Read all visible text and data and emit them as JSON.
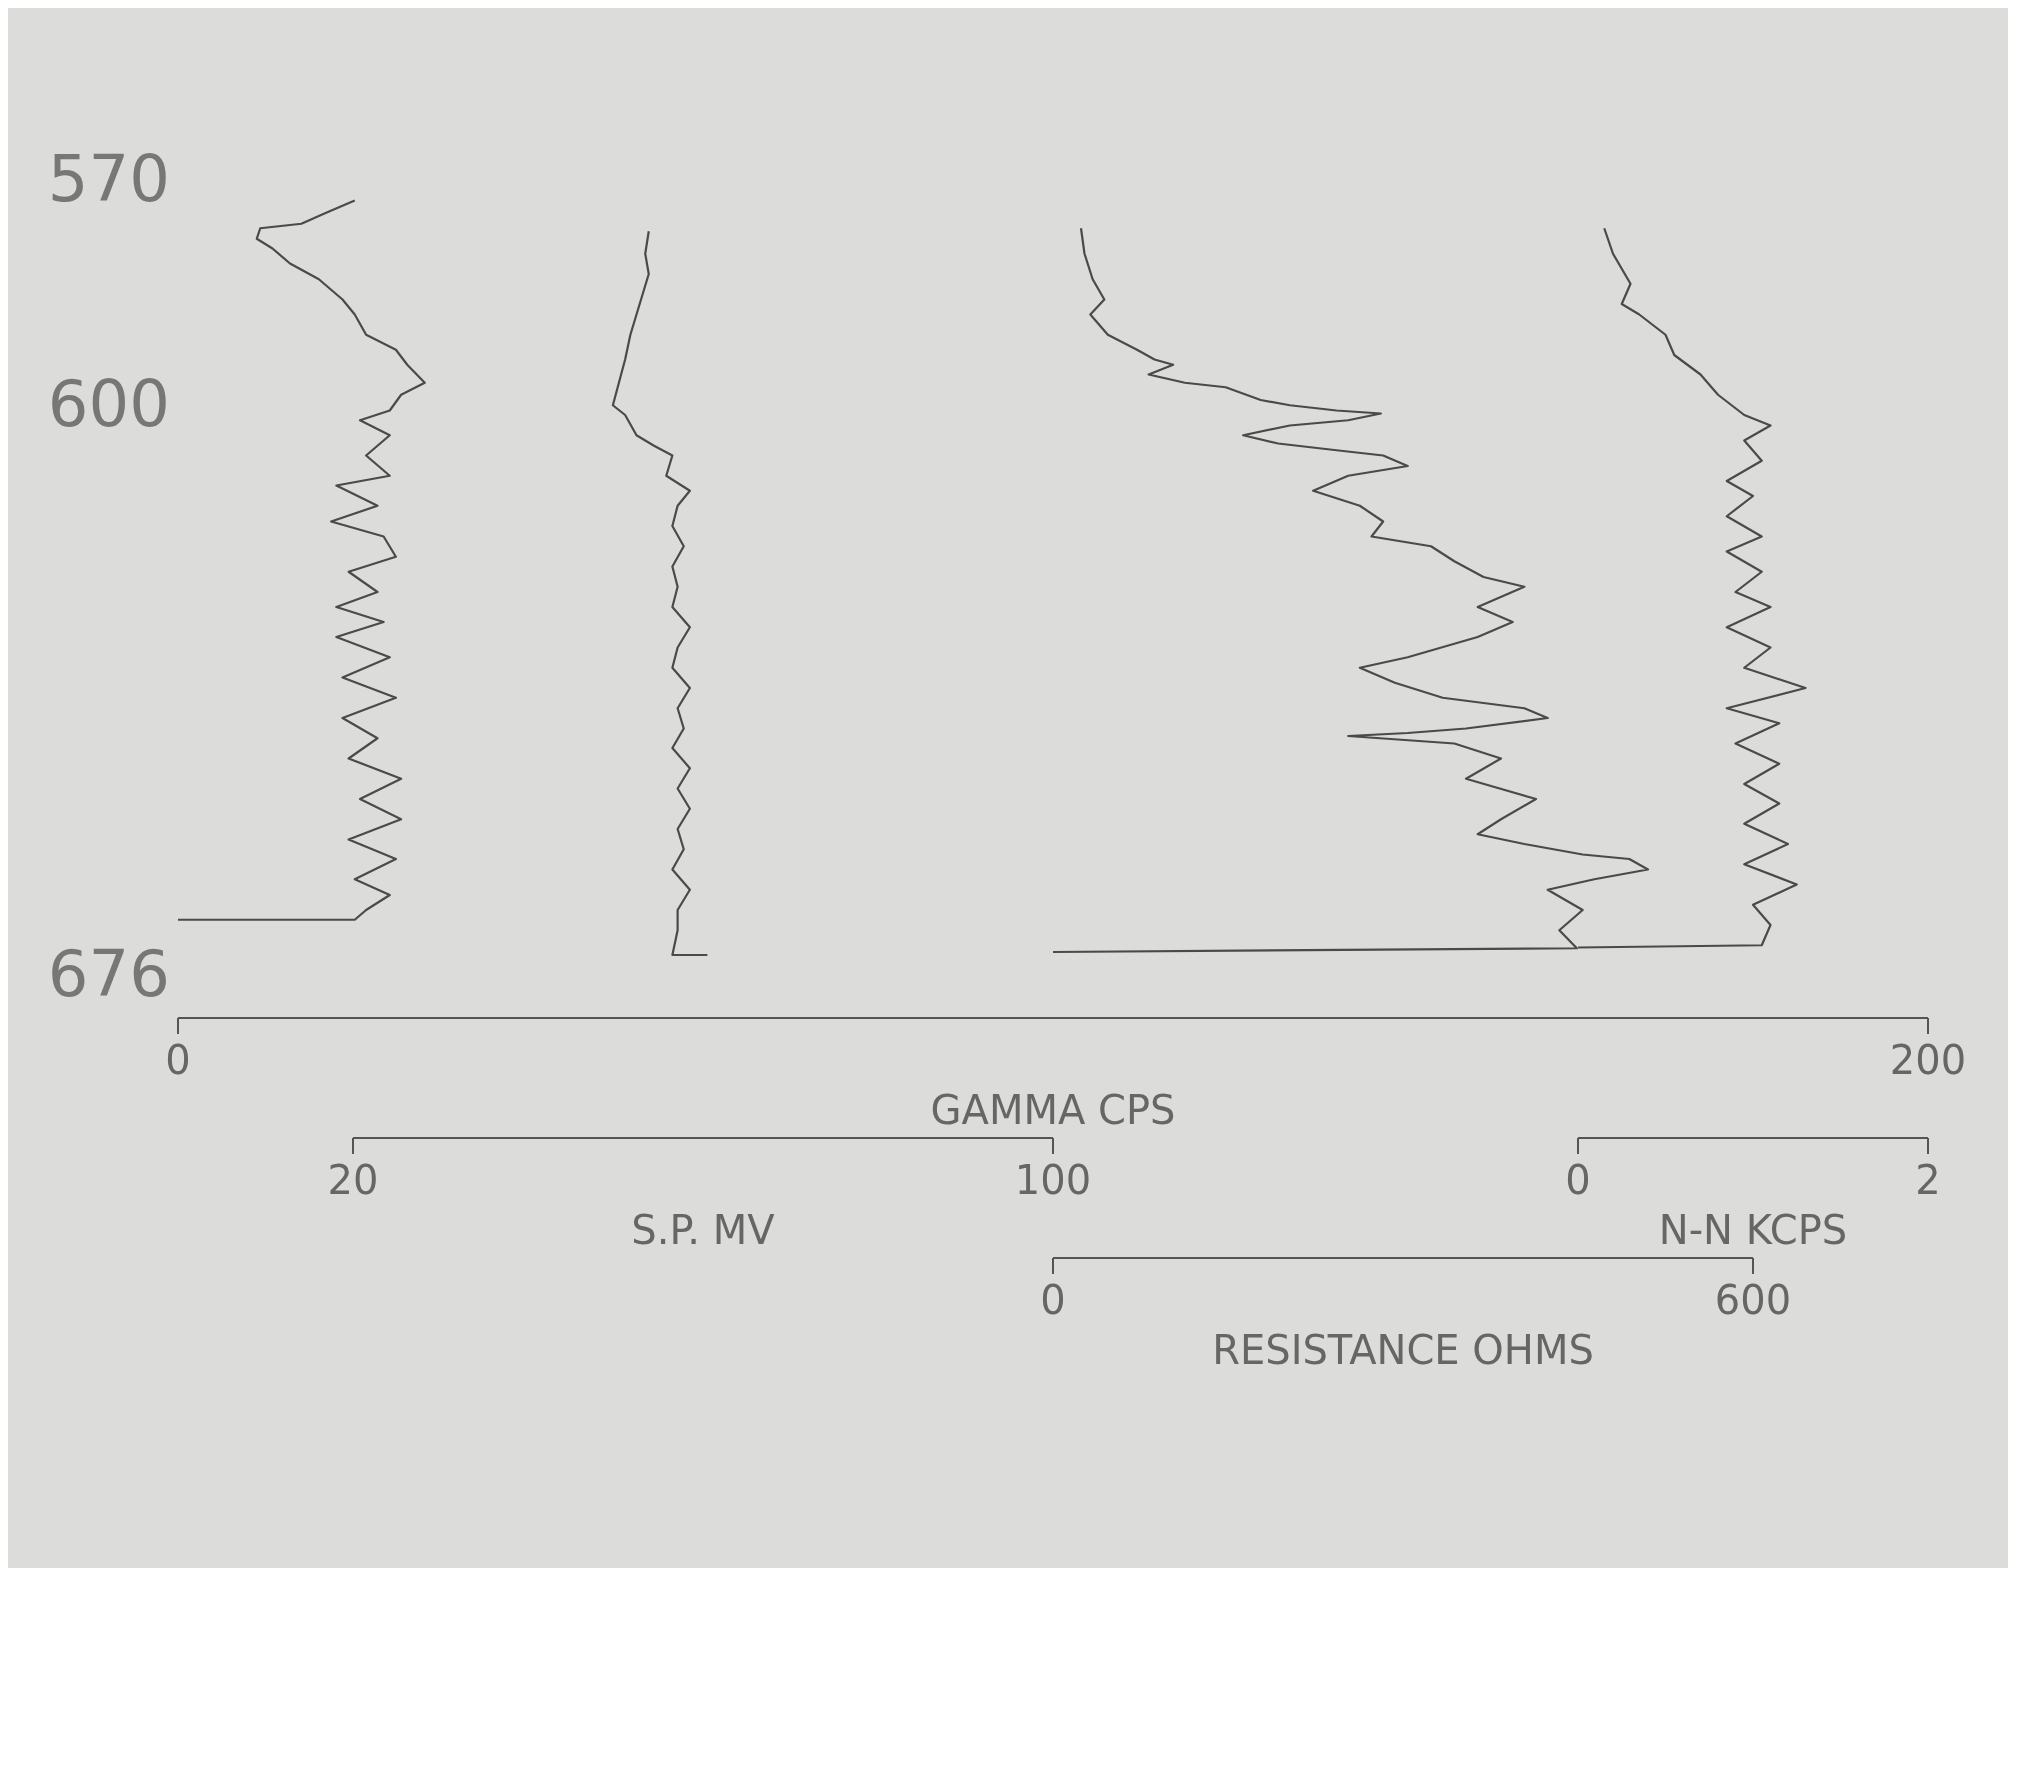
{
  "chart_data": [
    {
      "type": "line",
      "orientation": "horizontal",
      "marker": "none",
      "line_style": "solid",
      "xlabel": "GAMMA CPS",
      "xlim": [
        0,
        200
      ],
      "xticks": [
        0,
        200
      ],
      "ylim": [
        682,
        570
      ],
      "yticks": [
        570,
        600,
        676
      ],
      "series": [
        {
          "color": "#4a4a4a",
          "x": [
            573.0,
            574.7,
            576.1,
            576.7,
            578.1,
            579.4,
            581.4,
            583.5,
            586.2,
            588.2,
            590.9,
            592.9,
            594.9,
            597.3,
            598.9,
            601.0,
            602.3,
            604.3,
            607.0,
            609.7,
            611.0,
            613.7,
            615.8,
            617.8,
            620.5,
            622.5,
            625.2,
            627.2,
            629.2,
            631.2,
            633.9,
            636.6,
            639.3,
            642.0,
            644.7,
            647.4,
            650.1,
            652.8,
            655.5,
            658.2,
            660.8,
            663.5,
            665.6,
            667.6,
            668.9,
            668.9
          ],
          "values": [
            20.2,
            16.8,
            14.1,
            9.4,
            9.0,
            10.8,
            12.8,
            16.1,
            18.8,
            20.2,
            21.5,
            24.9,
            26.2,
            28.2,
            25.5,
            24.2,
            20.8,
            24.2,
            21.5,
            24.2,
            18.1,
            22.8,
            17.5,
            23.5,
            24.9,
            19.5,
            22.8,
            18.1,
            23.5,
            18.1,
            24.2,
            18.8,
            24.9,
            18.8,
            22.8,
            19.5,
            25.5,
            20.8,
            25.5,
            19.5,
            24.9,
            20.2,
            24.2,
            21.5,
            20.2,
            0
          ]
        }
      ]
    },
    {
      "type": "line",
      "orientation": "horizontal",
      "marker": "none",
      "line_style": "solid",
      "xlabel": "S.P. MV",
      "xlim": [
        20,
        100
      ],
      "xticks": [
        20,
        100
      ],
      "ylim": [
        698,
        570
      ],
      "yticks": [
        570,
        600,
        676
      ],
      "tick_labels": "x",
      "series": [
        {
          "color": "#4a4a4a",
          "x": [
            577.1,
            580.1,
            582.8,
            585.5,
            588.2,
            590.9,
            594.2,
            600.3,
            601.6,
            604.3,
            605.7,
            607.0,
            609.7,
            611.7,
            613.7,
            616.4,
            619.1,
            621.8,
            624.5,
            627.2,
            629.9,
            632.6,
            635.3,
            638.0,
            640.7,
            643.4,
            646.0,
            648.7,
            651.4,
            654.1,
            656.8,
            659.5,
            662.2,
            664.9,
            667.6,
            670.3,
            673.6,
            673.6
          ],
          "values": [
            53.8,
            53.4,
            53.8,
            53.1,
            52.4,
            51.7,
            51.1,
            49.7,
            51.1,
            52.4,
            54.4,
            56.5,
            55.8,
            58.5,
            57.1,
            56.5,
            57.8,
            56.5,
            57.1,
            56.5,
            58.5,
            57.1,
            56.5,
            58.5,
            57.1,
            57.8,
            56.5,
            58.5,
            57.1,
            58.5,
            57.1,
            57.8,
            56.5,
            58.5,
            57.1,
            57.1,
            56.5,
            60.5
          ]
        }
      ]
    },
    {
      "type": "line",
      "orientation": "horizontal",
      "marker": "none",
      "line_style": "solid",
      "xlabel": "N-N KCPS",
      "xlim": [
        0,
        2
      ],
      "xticks": [
        0,
        2
      ],
      "ylim": [
        698,
        570
      ],
      "yticks": [
        570,
        600,
        676
      ],
      "tick_labels": "x",
      "series": [
        {
          "color": "#4a4a4a",
          "x": [
            576.7,
            580.1,
            584.1,
            586.8,
            588.2,
            590.9,
            593.6,
            596.2,
            598.9,
            601.6,
            603.0,
            605.0,
            607.7,
            610.4,
            612.4,
            615.1,
            617.8,
            619.8,
            622.5,
            625.2,
            627.2,
            629.9,
            632.6,
            635.3,
            638.0,
            640.7,
            642.7,
            645.4,
            648.1,
            650.8,
            653.4,
            656.1,
            658.8,
            661.5,
            664.2,
            666.9,
            669.6,
            672.3,
            672.6
          ],
          "values": [
            0.15,
            0.2,
            0.3,
            0.25,
            0.35,
            0.5,
            0.55,
            0.7,
            0.8,
            0.95,
            1.1,
            0.95,
            1.05,
            0.85,
            1.0,
            0.85,
            1.05,
            0.85,
            1.05,
            0.9,
            1.1,
            0.85,
            1.1,
            0.95,
            1.3,
            0.85,
            1.15,
            0.9,
            1.15,
            0.95,
            1.15,
            0.95,
            1.2,
            0.95,
            1.25,
            1.0,
            1.1,
            1.05,
            0
          ]
        }
      ]
    },
    {
      "type": "line",
      "orientation": "horizontal",
      "marker": "none",
      "line_style": "solid",
      "xlabel": "RESISTANCE OHMS",
      "xlim": [
        0,
        600
      ],
      "xticks": [
        0,
        600
      ],
      "ylim": [
        714,
        570
      ],
      "yticks": [
        570,
        600,
        676
      ],
      "tick_labels": "x",
      "series": [
        {
          "color": "#4a4a4a",
          "x": [
            576.7,
            580.1,
            583.5,
            586.2,
            588.2,
            590.9,
            592.9,
            594.2,
            594.9,
            596.2,
            597.3,
            597.9,
            599.6,
            600.3,
            601.0,
            601.4,
            602.3,
            603.0,
            604.3,
            605.4,
            606.3,
            607.0,
            608.4,
            609.7,
            611.7,
            613.7,
            615.8,
            617.8,
            619.1,
            621.1,
            623.2,
            624.5,
            627.2,
            629.2,
            631.2,
            633.9,
            635.3,
            637.3,
            639.3,
            640.7,
            642.0,
            643.4,
            644.0,
            644.4,
            645.4,
            647.4,
            650.1,
            652.8,
            655.5,
            657.5,
            658.8,
            660.2,
            660.8,
            662.2,
            663.5,
            664.9,
            667.6,
            670.3,
            672.7,
            673.2
          ],
          "values": [
            24,
            27,
            34,
            44,
            32,
            47,
            72,
            87,
            103,
            82,
            113,
            148,
            178,
            203,
            243,
            281,
            253,
            203,
            163,
            193,
            243,
            283,
            304,
            253,
            223,
            263,
            283,
            273,
            324,
            344,
            369,
            404,
            364,
            394,
            364,
            304,
            263,
            293,
            334,
            404,
            424,
            354,
            304,
            253,
            344,
            384,
            354,
            414,
            384,
            364,
            404,
            454,
            494,
            510,
            464,
            424,
            454,
            434,
            449,
            0
          ]
        }
      ]
    }
  ]
}
